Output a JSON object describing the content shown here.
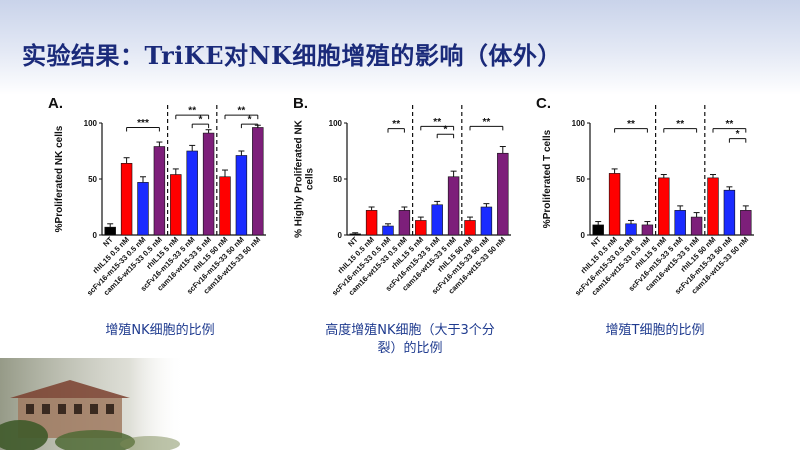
{
  "slide": {
    "title": "实验结果：TriKE对NK细胞增殖的影响（体外）"
  },
  "captions": [
    "增殖NK细胞的比例",
    "高度增殖NK细胞（大于3个分裂）的比例",
    "增殖T细胞的比例"
  ],
  "colors": {
    "title": "#1a2a7a",
    "caption": "#1f3b8f",
    "nt": "#000000",
    "rhil15": "#ff0000",
    "scfv": "#1a2bff",
    "cam16": "#7d1f7a"
  },
  "chart_data": [
    {
      "type": "bar",
      "panel_label": "A.",
      "ylabel": "%Proliferated NK cells",
      "ylim": [
        0,
        100
      ],
      "yticks": [
        "0",
        "50",
        "100"
      ],
      "categories": [
        "NT",
        "rhIL15 0.5 nM",
        "scFv16-m15-33 0.5 nM",
        "cam16-wt15-33 0.5 nM",
        "rhIL15 5 nM",
        "scFv16-m15-33 5 nM",
        "cam16-wt15-33 5 nM",
        "rhIL15 50 nM",
        "scFv16-m15-33 50 nM",
        "cam16-wt15-33 50 nM"
      ],
      "values": [
        7,
        64,
        47,
        79,
        54,
        75,
        91,
        52,
        71,
        96
      ],
      "errors": [
        3,
        5,
        5,
        4,
        5,
        5,
        3,
        6,
        4,
        2
      ],
      "color_keys": [
        "nt",
        "rhil15",
        "scfv",
        "cam16",
        "rhil15",
        "scfv",
        "cam16",
        "rhil15",
        "scfv",
        "cam16"
      ],
      "dividers_after": [
        3,
        6
      ],
      "brackets": [
        {
          "from": 1,
          "to": 3,
          "label": "***",
          "y": 96
        },
        {
          "from": 4,
          "to": 6,
          "label": "**",
          "y": 107
        },
        {
          "from": 5,
          "to": 6,
          "label": "*",
          "y": 99
        },
        {
          "from": 7,
          "to": 9,
          "label": "**",
          "y": 107
        },
        {
          "from": 8,
          "to": 9,
          "label": "*",
          "y": 99
        }
      ]
    },
    {
      "type": "bar",
      "panel_label": "B.",
      "ylabel": "% Highly Proliferated NK cells",
      "ylim": [
        0,
        100
      ],
      "yticks": [
        "0",
        "50",
        "100"
      ],
      "categories": [
        "NT",
        "rhIL15 0.5 nM",
        "scFv16-m15-33 0.5 nM",
        "cam16-wt15-33 0.5 nM",
        "rhIL15 5 nM",
        "scFv16-m15-33 5 nM",
        "cam16-wt15-33 5 nM",
        "rhIL15 50 nM",
        "scFv16-m15-33 50 nM",
        "cam16-wt15-33 50 nM"
      ],
      "values": [
        1,
        22,
        8,
        22,
        13,
        27,
        52,
        13,
        25,
        73
      ],
      "errors": [
        1,
        3,
        2,
        3,
        3,
        3,
        5,
        3,
        3,
        6
      ],
      "color_keys": [
        "nt",
        "rhil15",
        "scfv",
        "cam16",
        "rhil15",
        "scfv",
        "cam16",
        "rhil15",
        "scfv",
        "cam16"
      ],
      "dividers_after": [
        3,
        6
      ],
      "brackets": [
        {
          "from": 2,
          "to": 3,
          "label": "**",
          "y": 95
        },
        {
          "from": 4,
          "to": 6,
          "label": "**",
          "y": 97
        },
        {
          "from": 5,
          "to": 6,
          "label": "*",
          "y": 90
        },
        {
          "from": 7,
          "to": 9,
          "label": "**",
          "y": 97
        }
      ]
    },
    {
      "type": "bar",
      "panel_label": "C.",
      "ylabel": "%Proliferated T cells",
      "ylim": [
        0,
        100
      ],
      "yticks": [
        "0",
        "50",
        "100"
      ],
      "categories": [
        "NT",
        "rhIL15 0.5 nM",
        "scFv16-m15-33 0.5 nM",
        "cam16-wt15-33 0.5 nM",
        "rhIL15 5 nM",
        "scFv16-m15-33 5 nM",
        "cam16-wt15-33 5 nM",
        "rhIL15 50 nM",
        "scFv16-m15-33 50 nM",
        "cam16-wt15-33 50 nM"
      ],
      "values": [
        9,
        55,
        10,
        9,
        51,
        22,
        16,
        51,
        40,
        22
      ],
      "errors": [
        3,
        4,
        3,
        3,
        3,
        4,
        4,
        3,
        3,
        4
      ],
      "color_keys": [
        "nt",
        "rhil15",
        "scfv",
        "cam16",
        "rhil15",
        "scfv",
        "cam16",
        "rhil15",
        "scfv",
        "cam16"
      ],
      "dividers_after": [
        3,
        6
      ],
      "brackets": [
        {
          "from": 1,
          "to": 3,
          "label": "**",
          "y": 95
        },
        {
          "from": 4,
          "to": 6,
          "label": "**",
          "y": 95
        },
        {
          "from": 7,
          "to": 9,
          "label": "**",
          "y": 95
        },
        {
          "from": 8,
          "to": 9,
          "label": "*",
          "y": 86
        }
      ]
    }
  ]
}
